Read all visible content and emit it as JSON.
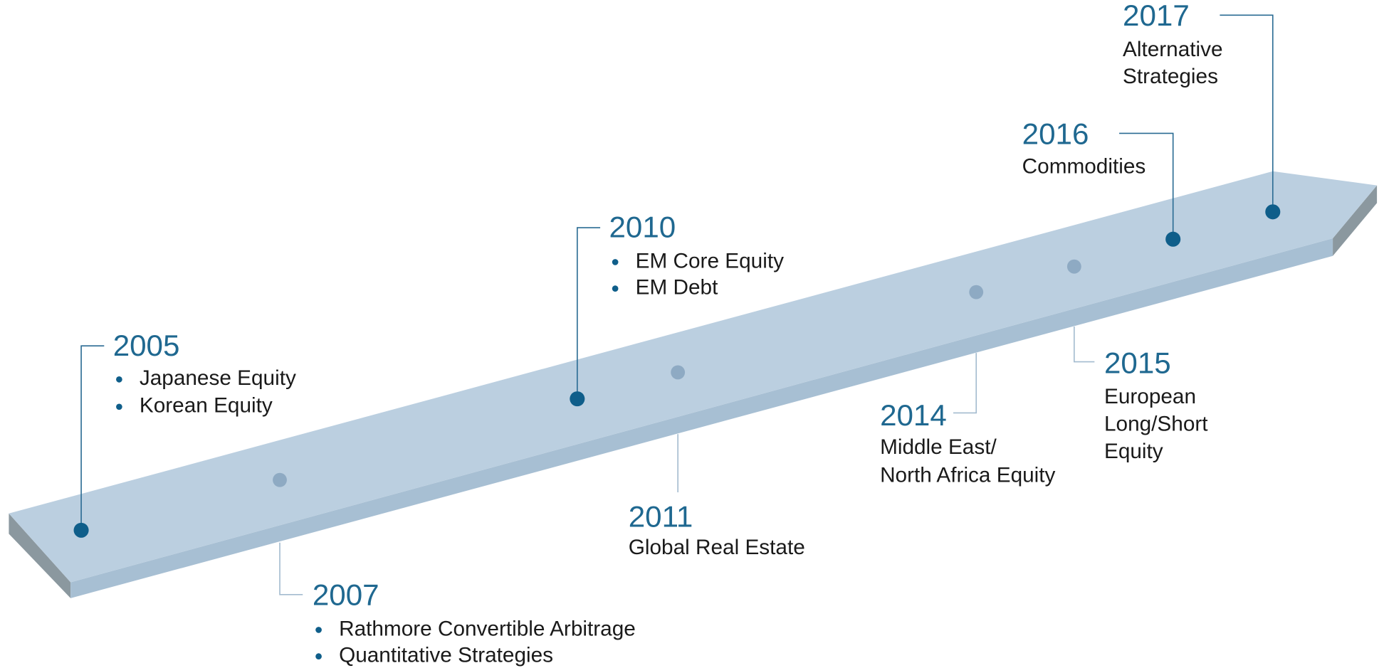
{
  "milestones": [
    {
      "year": "2005",
      "bullets": [
        "Japanese Equity",
        "Korean Equity"
      ]
    },
    {
      "year": "2007",
      "bullets": [
        "Rathmore Convertible Arbitrage",
        "Quantitative Strategies"
      ]
    },
    {
      "year": "2010",
      "bullets": [
        "EM Core Equity",
        "EM Debt"
      ]
    },
    {
      "year": "2011",
      "lines": [
        "Global Real Estate"
      ]
    },
    {
      "year": "2014",
      "lines": [
        "Middle East/",
        "North Africa Equity"
      ]
    },
    {
      "year": "2015",
      "lines": [
        "European",
        "Long/Short",
        "Equity"
      ]
    },
    {
      "year": "2016",
      "lines": [
        "Commodities"
      ]
    },
    {
      "year": "2017",
      "lines": [
        "Alternative",
        "Strategies"
      ]
    }
  ]
}
